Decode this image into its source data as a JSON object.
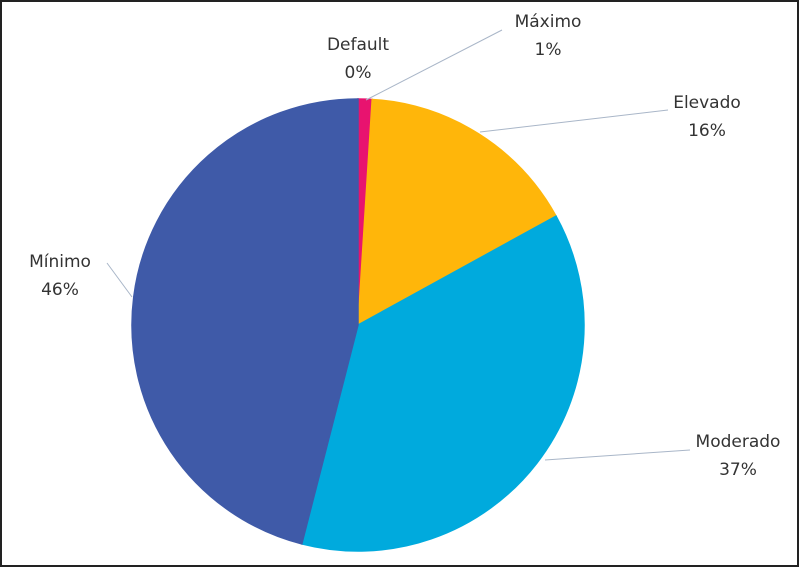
{
  "chart_data": {
    "type": "pie",
    "categories": [
      "Default",
      "Máximo",
      "Elevado",
      "Moderado",
      "Mínimo"
    ],
    "values": [
      0,
      1,
      16,
      37,
      46
    ],
    "value_labels": [
      "0%",
      "1%",
      "16%",
      "37%",
      "46%"
    ],
    "colors": [
      "#3a9a3a",
      "#e8136f",
      "#ffb60a",
      "#00aadd",
      "#3f5aa8"
    ]
  }
}
